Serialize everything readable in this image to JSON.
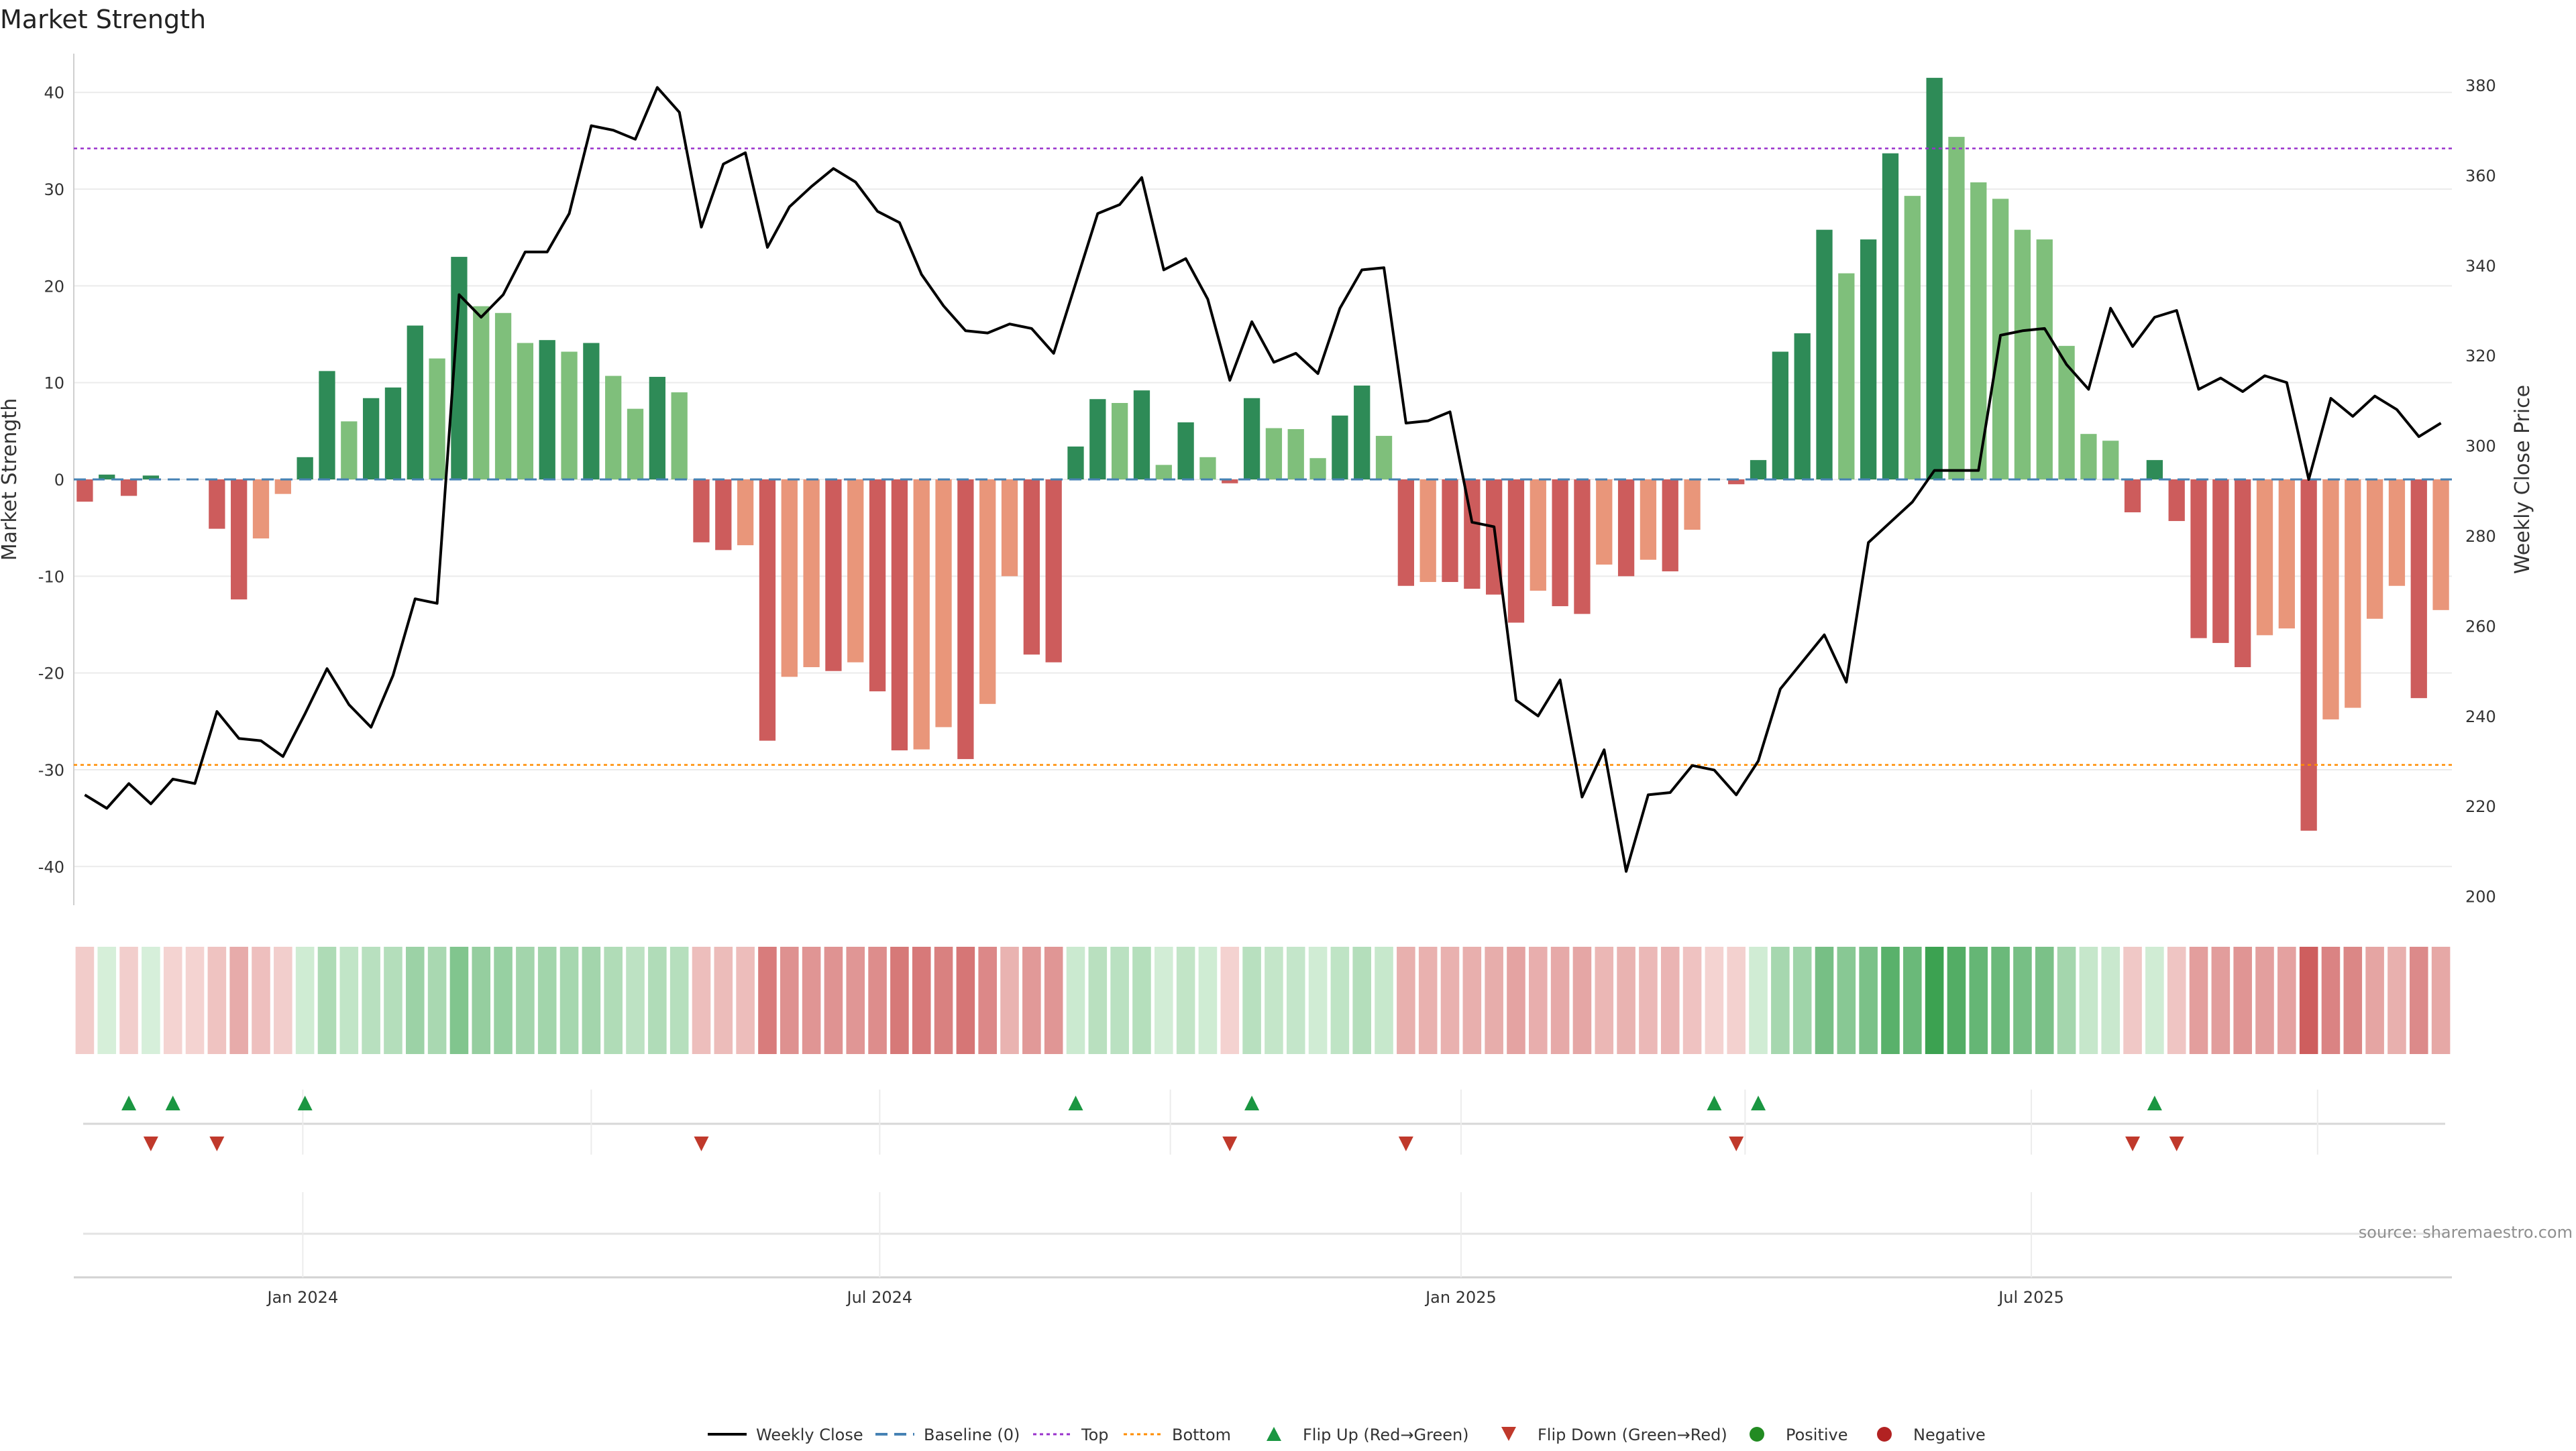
{
  "chart_data": {
    "type": "bar",
    "title": "Market Strength",
    "ylabel_left": "Market Strength",
    "ylabel_right": "Weekly Close Price",
    "source": "source: sharemaestro.com",
    "x_tick_labels": [
      "Jan 2024",
      "Jul 2024",
      "Jan 2025",
      "Jul 2025"
    ],
    "left_axis": {
      "ylim": [
        -44,
        44
      ],
      "ticks": [
        40,
        30,
        20,
        10,
        0,
        -10,
        -20,
        -30,
        -40
      ]
    },
    "right_axis": {
      "ylim": [
        198,
        387
      ],
      "ticks": [
        380,
        360,
        340,
        320,
        300,
        280,
        260,
        240,
        220,
        200
      ]
    },
    "reference_lines": {
      "baseline": 0,
      "top": 34.2,
      "bottom": -29.5
    },
    "strength_values": [
      -2.3,
      0.5,
      -1.7,
      0.4,
      0,
      0,
      -5.1,
      -12.4,
      -6.1,
      -1.5,
      2.3,
      11.2,
      6.0,
      8.4,
      9.5,
      15.9,
      12.5,
      23.0,
      17.9,
      17.2,
      14.1,
      14.4,
      13.2,
      14.1,
      10.7,
      7.3,
      10.6,
      9.0,
      -6.5,
      -7.3,
      -6.8,
      -27.0,
      -20.4,
      -19.4,
      -19.8,
      -18.9,
      -21.9,
      -28.0,
      -27.9,
      -25.6,
      -28.9,
      -23.2,
      -10.0,
      -18.1,
      -18.9,
      3.4,
      8.3,
      7.9,
      9.2,
      1.5,
      5.9,
      2.3,
      -0.4,
      8.4,
      5.3,
      5.2,
      2.2,
      6.6,
      9.7,
      4.5,
      -11.0,
      -10.6,
      -10.6,
      -11.3,
      -11.9,
      -14.8,
      -11.5,
      -13.1,
      -13.9,
      -8.8,
      -10.0,
      -8.3,
      -9.5,
      -5.2,
      0,
      -0.5,
      2.0,
      13.2,
      15.1,
      25.8,
      21.3,
      24.8,
      33.7,
      29.3,
      41.5,
      35.4,
      30.7,
      29.0,
      25.8,
      24.8,
      13.8,
      4.7,
      4.0,
      -3.4,
      2.0,
      -4.3,
      -16.4,
      -16.9,
      -19.4,
      -16.1,
      -15.4,
      -36.3,
      -24.8,
      -23.6,
      -14.4,
      -11.0,
      -22.6,
      -13.5
    ],
    "weekly_close": [
      222.5,
      219.5,
      225.0,
      220.5,
      226.0,
      225.0,
      241.0,
      235.0,
      234.5,
      231.0,
      240.5,
      250.5,
      242.5,
      237.5,
      249.0,
      266.0,
      265.0,
      333.5,
      328.5,
      333.5,
      343.0,
      343.0,
      351.5,
      371.0,
      370.0,
      368.0,
      379.5,
      374.0,
      348.5,
      362.5,
      365.0,
      344.0,
      353.0,
      357.5,
      361.5,
      358.5,
      352.0,
      349.5,
      338.0,
      331.0,
      325.5,
      325.0,
      327.0,
      326.0,
      320.5,
      336.0,
      351.5,
      353.5,
      359.5,
      339.0,
      341.5,
      332.5,
      314.5,
      327.5,
      318.5,
      320.5,
      316.0,
      330.5,
      339.0,
      339.5,
      305.0,
      305.5,
      307.5,
      283.0,
      282.0,
      243.5,
      240.0,
      248.0,
      222.0,
      232.5,
      205.5,
      222.5,
      223.0,
      229.0,
      228.0,
      222.5,
      230.0,
      246.0,
      252.0,
      258.0,
      247.5,
      278.5,
      283.0,
      287.5,
      294.5,
      294.5,
      294.5,
      324.5,
      325.5,
      326.0,
      318.0,
      312.5,
      330.5,
      322.0,
      328.5,
      330.0,
      312.5,
      315.0,
      312.0,
      315.5,
      314.0,
      292.5,
      310.5,
      306.5,
      311.0,
      308.0,
      302.0,
      305.0
    ],
    "flip_up_indices": [
      2,
      4,
      10,
      45,
      53,
      74,
      76,
      94
    ],
    "flip_down_indices": [
      3,
      6,
      28,
      52,
      60,
      75,
      93,
      95
    ],
    "legend": [
      "Weekly Close",
      "Baseline (0)",
      "Top",
      "Bottom",
      "Flip Up (Red→Green)",
      "Flip Down (Green→Red)",
      "Positive",
      "Negative"
    ],
    "colors": {
      "positive_strong": "#2e8b57",
      "positive_weak": "#7fbf7b",
      "negative_strong": "#cd5c5c",
      "negative_weak": "#e9967a",
      "price_line": "#000000",
      "baseline": "#4682b4",
      "top": "#9932cc",
      "bottom": "#ff8c00",
      "flip_up": "#1a9641",
      "flip_down": "#c0392b",
      "positive_dot": "#228b22",
      "negative_dot": "#b22222",
      "heat_neg_light": "#f4d3d1",
      "heat_neg_dark": "#cd5c5c",
      "heat_pos_light": "#d8f0db",
      "heat_pos_dark": "#3aa14f"
    }
  }
}
